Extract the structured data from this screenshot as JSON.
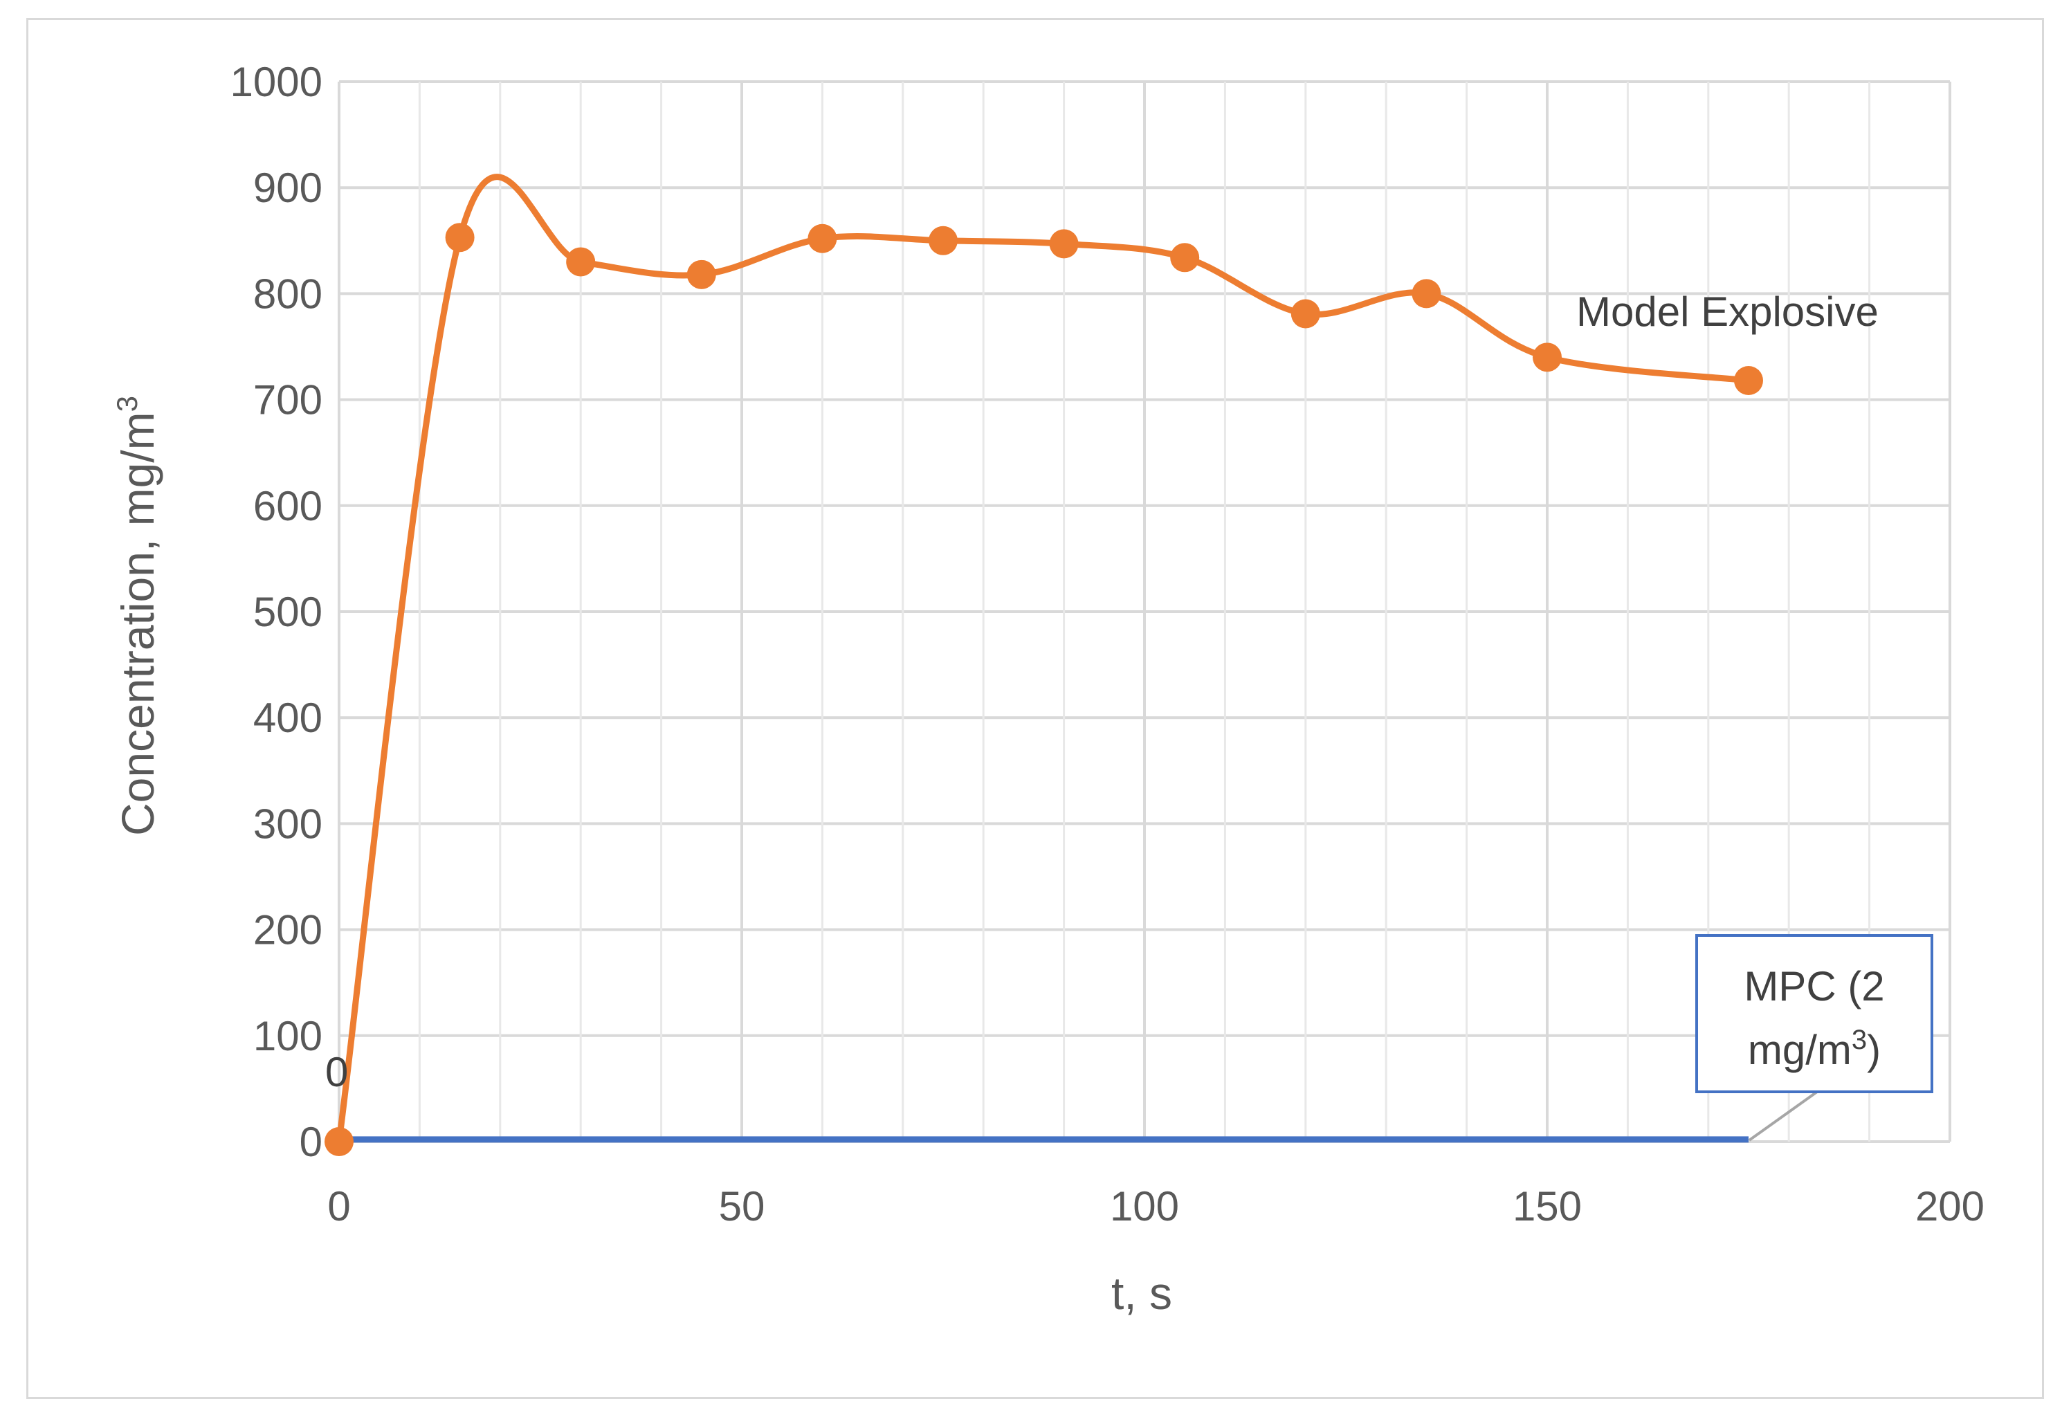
{
  "chart_data": {
    "type": "line",
    "xlabel": "t, s",
    "ylabel": "Concentration, mg/m",
    "ylabel_sup": "3",
    "xlim": [
      0,
      200
    ],
    "ylim": [
      0,
      1000
    ],
    "x_ticks": [
      "0",
      "50",
      "100",
      "150",
      "200"
    ],
    "y_ticks": [
      "0",
      "100",
      "200",
      "300",
      "400",
      "500",
      "600",
      "700",
      "800",
      "900",
      "1000"
    ],
    "grid": true,
    "series": [
      {
        "name": "Model Explosive",
        "color": "#ED7D31",
        "smooth": true,
        "x": [
          0,
          15,
          30,
          45,
          60,
          75,
          90,
          105,
          120,
          135,
          150,
          175
        ],
        "y": [
          0,
          853,
          830,
          818,
          852,
          850,
          847,
          834,
          781,
          800,
          740,
          718
        ]
      },
      {
        "name": "MPC (2 mg/m3)",
        "color": "#4472C4",
        "x": [
          0,
          175
        ],
        "y": [
          2,
          2
        ]
      }
    ],
    "annotations": {
      "model_label": "Model Explosive",
      "zero_label": "0",
      "mpc_line1": "MPC (2",
      "mpc_line2": "mg/m",
      "mpc_sup": "3",
      "mpc_close": ")"
    }
  }
}
